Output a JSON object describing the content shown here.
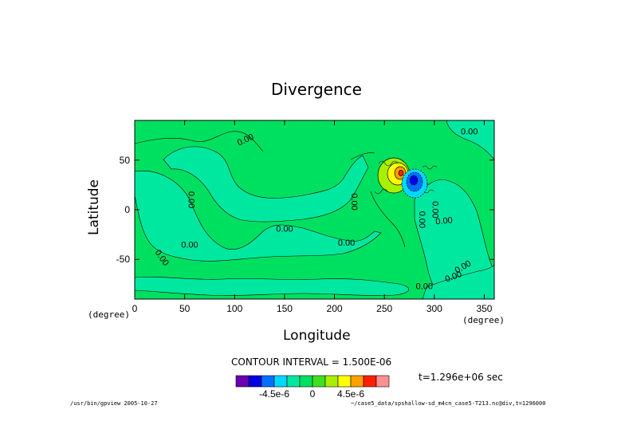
{
  "chart_data": {
    "type": "heatmap",
    "title": "Divergence",
    "xlabel": "Longitude",
    "ylabel": "Latitude",
    "x_unit": "(degree)",
    "y_unit": "(degree)",
    "xlim": [
      0,
      360
    ],
    "ylim": [
      -90,
      90
    ],
    "xticks": [
      0,
      50,
      100,
      150,
      200,
      250,
      300,
      350
    ],
    "yticks": [
      -50,
      0,
      50
    ],
    "contour_interval_text": "CONTOUR INTERVAL = 1.500E-06",
    "contour_label": "0.00",
    "time_text": "t=1.296e+06 sec",
    "colorbar": {
      "colors": [
        "#6a00b0",
        "#0000e0",
        "#0070ff",
        "#00d8ff",
        "#00e8a0",
        "#00e060",
        "#40e020",
        "#a8f000",
        "#ffff00",
        "#ffa000",
        "#ff2000",
        "#ff9090"
      ],
      "tick_labels": [
        "-4.5e-6",
        "0",
        "4.5e-6"
      ],
      "tick_values": [
        -4.5e-06,
        0,
        4.5e-06
      ]
    },
    "dominant_levels": {
      "near_zero_negative": "#00e8a0",
      "near_zero_positive": "#00e060"
    },
    "disturbance": {
      "center_lon": 265,
      "center_lat": 32,
      "positive_peak": 6e-06,
      "negative_peak": -6e-06
    }
  },
  "footer": {
    "left": "/usr/bin/gpview  2005-10-27",
    "right": "~/case5_data/spshallow-sd_m4cn_case5-T213.nc@div,t=1296000"
  }
}
